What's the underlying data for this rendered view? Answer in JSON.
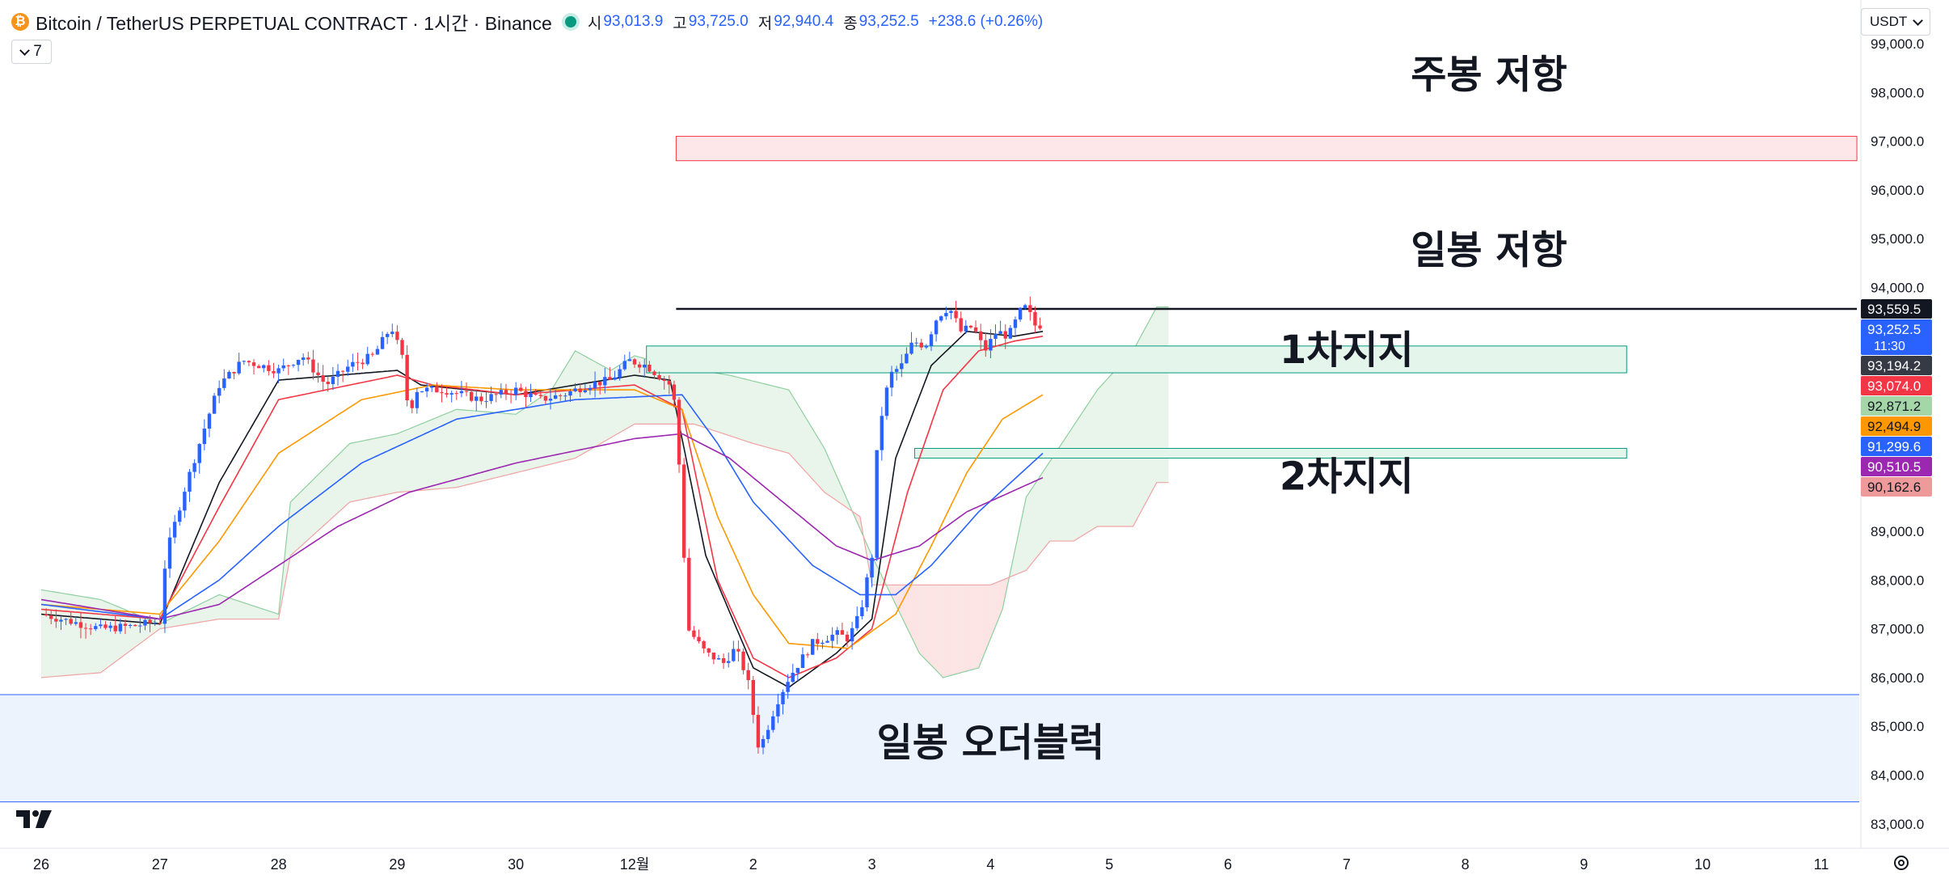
{
  "header": {
    "symbol": "Bitcoin / TetherUS PERPETUAL CONTRACT · 1시간 · Binance",
    "coin_icon_glyph": "₿",
    "open_label": "시",
    "open": "93,013.9",
    "high_label": "고",
    "high": "93,725.0",
    "low_label": "저",
    "low": "92,940.4",
    "close_label": "종",
    "close": "93,252.5",
    "change": "+238.6 (+0.26%)"
  },
  "indicator_toggle": {
    "count": "7"
  },
  "currency_select": {
    "value": "USDT"
  },
  "icons": {
    "logo": "tradingview-logo-icon",
    "settings": "gear-icon",
    "dropdown": "chevron-down-icon"
  },
  "chart_data": {
    "type": "candlestick",
    "interval": "1h",
    "y_axis": {
      "min": 83000,
      "max": 99000,
      "ticks": [
        {
          "value": 99000,
          "label": "99,000.0"
        },
        {
          "value": 98000,
          "label": "98,000.0"
        },
        {
          "value": 97000,
          "label": "97,000.0"
        },
        {
          "value": 96000,
          "label": "96,000.0"
        },
        {
          "value": 95000,
          "label": "95,000.0"
        },
        {
          "value": 94000,
          "label": "94,000.0"
        },
        {
          "value": 89000,
          "label": "89,000.0"
        },
        {
          "value": 88000,
          "label": "88,000.0"
        },
        {
          "value": 87000,
          "label": "87,000.0"
        },
        {
          "value": 86000,
          "label": "86,000.0"
        },
        {
          "value": 85000,
          "label": "85,000.0"
        },
        {
          "value": 84000,
          "label": "84,000.0"
        },
        {
          "value": 83000,
          "label": "83,000.0"
        }
      ]
    },
    "x_axis": {
      "ticks": [
        {
          "day": 0,
          "label": "26"
        },
        {
          "day": 1,
          "label": "27"
        },
        {
          "day": 2,
          "label": "28"
        },
        {
          "day": 3,
          "label": "29"
        },
        {
          "day": 4,
          "label": "30"
        },
        {
          "day": 5,
          "label": "12월"
        },
        {
          "day": 6,
          "label": "2"
        },
        {
          "day": 7,
          "label": "3"
        },
        {
          "day": 8,
          "label": "4"
        },
        {
          "day": 9,
          "label": "5"
        },
        {
          "day": 10,
          "label": "6"
        },
        {
          "day": 11,
          "label": "7"
        },
        {
          "day": 12,
          "label": "8"
        },
        {
          "day": 13,
          "label": "9"
        },
        {
          "day": 14,
          "label": "10"
        },
        {
          "day": 15,
          "label": "11"
        }
      ]
    },
    "price_path": [
      [
        0,
        87300
      ],
      [
        0.25,
        87150
      ],
      [
        0.5,
        87000
      ],
      [
        0.75,
        87050
      ],
      [
        1,
        87150
      ],
      [
        1.05,
        88500
      ],
      [
        1.2,
        89800
      ],
      [
        1.4,
        91300
      ],
      [
        1.5,
        92000
      ],
      [
        1.7,
        92500
      ],
      [
        2,
        92300
      ],
      [
        2.2,
        92600
      ],
      [
        2.4,
        92000
      ],
      [
        2.6,
        92400
      ],
      [
        2.8,
        92600
      ],
      [
        2.95,
        93200
      ],
      [
        3.05,
        92500
      ],
      [
        3.1,
        91300
      ],
      [
        3.15,
        91900
      ],
      [
        3.4,
        91900
      ],
      [
        3.7,
        91700
      ],
      [
        4,
        91900
      ],
      [
        4.2,
        91700
      ],
      [
        4.4,
        91800
      ],
      [
        4.6,
        92000
      ],
      [
        4.8,
        92100
      ],
      [
        4.95,
        92500
      ],
      [
        5.1,
        92400
      ],
      [
        5.3,
        92000
      ],
      [
        5.35,
        91500
      ],
      [
        5.45,
        87000
      ],
      [
        5.6,
        86500
      ],
      [
        5.75,
        86300
      ],
      [
        5.85,
        86600
      ],
      [
        5.95,
        86000
      ],
      [
        6.05,
        84500
      ],
      [
        6.2,
        85500
      ],
      [
        6.3,
        86000
      ],
      [
        6.5,
        86700
      ],
      [
        6.7,
        86900
      ],
      [
        6.8,
        86800
      ],
      [
        6.9,
        87300
      ],
      [
        7.0,
        88500
      ],
      [
        7.05,
        91000
      ],
      [
        7.15,
        92200
      ],
      [
        7.25,
        92400
      ],
      [
        7.35,
        92900
      ],
      [
        7.45,
        92800
      ],
      [
        7.55,
        93400
      ],
      [
        7.65,
        93600
      ],
      [
        7.75,
        93100
      ],
      [
        7.85,
        93200
      ],
      [
        7.95,
        92700
      ],
      [
        8.05,
        93100
      ],
      [
        8.15,
        93000
      ],
      [
        8.25,
        93500
      ],
      [
        8.3,
        93600
      ],
      [
        8.38,
        93200
      ],
      [
        8.44,
        93252.5
      ]
    ],
    "moving_averages": [
      {
        "color": "#131722",
        "points": [
          [
            0,
            87300
          ],
          [
            1,
            87100
          ],
          [
            1.5,
            90000
          ],
          [
            2,
            92100
          ],
          [
            3,
            92300
          ],
          [
            3.2,
            92000
          ],
          [
            4,
            91800
          ],
          [
            5,
            92200
          ],
          [
            5.3,
            92100
          ],
          [
            5.6,
            88500
          ],
          [
            6,
            86200
          ],
          [
            6.3,
            85800
          ],
          [
            6.7,
            86500
          ],
          [
            7,
            87200
          ],
          [
            7.2,
            90500
          ],
          [
            7.5,
            92400
          ],
          [
            7.8,
            93100
          ],
          [
            8.2,
            93000
          ],
          [
            8.44,
            93100
          ]
        ]
      },
      {
        "color": "#f23645",
        "points": [
          [
            0,
            87400
          ],
          [
            1,
            87200
          ],
          [
            1.5,
            89500
          ],
          [
            2,
            91700
          ],
          [
            3,
            92200
          ],
          [
            3.3,
            92000
          ],
          [
            4,
            91800
          ],
          [
            5,
            92000
          ],
          [
            5.4,
            91500
          ],
          [
            5.7,
            88000
          ],
          [
            6,
            86400
          ],
          [
            6.3,
            86000
          ],
          [
            6.7,
            86400
          ],
          [
            7,
            87000
          ],
          [
            7.3,
            89800
          ],
          [
            7.6,
            91900
          ],
          [
            7.9,
            92700
          ],
          [
            8.2,
            92900
          ],
          [
            8.44,
            93000
          ]
        ]
      },
      {
        "color": "#ff9800",
        "points": [
          [
            0,
            87500
          ],
          [
            1,
            87300
          ],
          [
            1.5,
            88800
          ],
          [
            2,
            90600
          ],
          [
            2.7,
            91700
          ],
          [
            3.3,
            92000
          ],
          [
            4,
            91900
          ],
          [
            5,
            91900
          ],
          [
            5.4,
            91500
          ],
          [
            5.7,
            89300
          ],
          [
            6,
            87700
          ],
          [
            6.3,
            86700
          ],
          [
            6.8,
            86600
          ],
          [
            7.2,
            87300
          ],
          [
            7.5,
            88700
          ],
          [
            7.8,
            90200
          ],
          [
            8.1,
            91300
          ],
          [
            8.44,
            91800
          ]
        ]
      },
      {
        "color": "#2962ff",
        "points": [
          [
            0,
            87500
          ],
          [
            1,
            87200
          ],
          [
            1.5,
            88000
          ],
          [
            2,
            89100
          ],
          [
            2.7,
            90400
          ],
          [
            3.5,
            91300
          ],
          [
            4.5,
            91700
          ],
          [
            5.4,
            91800
          ],
          [
            5.7,
            90800
          ],
          [
            6,
            89600
          ],
          [
            6.5,
            88300
          ],
          [
            6.9,
            87700
          ],
          [
            7.2,
            87700
          ],
          [
            7.5,
            88300
          ],
          [
            7.9,
            89400
          ],
          [
            8.44,
            90600
          ]
        ]
      },
      {
        "color": "#9c27b0",
        "points": [
          [
            0,
            87600
          ],
          [
            1,
            87200
          ],
          [
            1.5,
            87500
          ],
          [
            2,
            88300
          ],
          [
            2.5,
            89100
          ],
          [
            3.1,
            89800
          ],
          [
            4,
            90400
          ],
          [
            5,
            90900
          ],
          [
            5.4,
            91000
          ],
          [
            5.8,
            90500
          ],
          [
            6.3,
            89500
          ],
          [
            6.7,
            88700
          ],
          [
            7,
            88400
          ],
          [
            7.4,
            88700
          ],
          [
            7.8,
            89400
          ],
          [
            8.44,
            90100
          ]
        ]
      }
    ],
    "cloud": {
      "green_upper": [
        [
          0,
          87800
        ],
        [
          0.5,
          87600
        ],
        [
          1,
          87100
        ],
        [
          1.5,
          87700
        ],
        [
          2,
          87300
        ],
        [
          2.1,
          89600
        ],
        [
          2.6,
          90800
        ],
        [
          3,
          91000
        ],
        [
          3.5,
          91500
        ],
        [
          4,
          91400
        ],
        [
          4.3,
          91900
        ],
        [
          4.5,
          92700
        ],
        [
          4.8,
          92300
        ],
        [
          5,
          92600
        ],
        [
          5.3,
          92400
        ],
        [
          5.8,
          92200
        ],
        [
          6.3,
          91900
        ],
        [
          6.6,
          90700
        ],
        [
          7,
          88500
        ],
        [
          7.4,
          86500
        ],
        [
          7.6,
          86000
        ],
        [
          7.9,
          86200
        ],
        [
          8.1,
          87400
        ],
        [
          8.3,
          89700
        ],
        [
          8.6,
          90800
        ],
        [
          8.9,
          91900
        ],
        [
          9.2,
          92700
        ],
        [
          9.4,
          93600
        ],
        [
          9.5,
          93600
        ]
      ],
      "red_lower": [
        [
          0,
          86000
        ],
        [
          0.5,
          86100
        ],
        [
          1,
          87000
        ],
        [
          1.5,
          87200
        ],
        [
          2,
          87200
        ],
        [
          2.1,
          88500
        ],
        [
          2.6,
          89600
        ],
        [
          3,
          89800
        ],
        [
          3.5,
          89900
        ],
        [
          4,
          90200
        ],
        [
          4.5,
          90500
        ],
        [
          5,
          91200
        ],
        [
          5.5,
          91200
        ],
        [
          6,
          90800
        ],
        [
          6.3,
          90600
        ],
        [
          6.6,
          89800
        ],
        [
          6.9,
          89300
        ],
        [
          7,
          87900
        ],
        [
          7.5,
          87900
        ],
        [
          8,
          87900
        ],
        [
          8.3,
          88200
        ],
        [
          8.5,
          88800
        ],
        [
          8.7,
          88800
        ],
        [
          8.9,
          89100
        ],
        [
          9.2,
          89100
        ],
        [
          9.4,
          90000
        ],
        [
          9.5,
          90000
        ]
      ]
    },
    "zones": [
      {
        "kind": "resistance",
        "label": "주봉 저항",
        "from_day": 5.35,
        "to_day": 15.3,
        "low": 96600,
        "high": 97100,
        "fill": "#fde7e9",
        "stroke": "#f23645"
      },
      {
        "kind": "level",
        "label": "일봉 저항",
        "from_day": 5.35,
        "to_day": 15.3,
        "price": 93559.5
      },
      {
        "kind": "support",
        "label": "1차지지",
        "from_day": 5.1,
        "to_day": 13.36,
        "low": 92250,
        "high": 92800,
        "fill": "#e4f5ec",
        "stroke": "#089981"
      },
      {
        "kind": "support",
        "label": "2차지지",
        "from_day": 7.36,
        "to_day": 13.36,
        "low": 90500,
        "high": 90700,
        "fill": "#e4f5ec",
        "stroke": "#089981"
      },
      {
        "kind": "order-block",
        "label": "일봉 오더블럭",
        "from_day": -0.3,
        "to_day": 15.3,
        "low": 83450,
        "high": 85650,
        "fill": "#edf3fd",
        "stroke": "#2962ff"
      }
    ],
    "annotations": [
      {
        "text": "주봉 저항",
        "day": 12.2,
        "price": 98100
      },
      {
        "text": "일봉 저항",
        "day": 12.2,
        "price": 94500
      },
      {
        "text": "1차지지",
        "day": 11.0,
        "price": 92450
      },
      {
        "text": "2차지지",
        "day": 11.0,
        "price": 89850
      },
      {
        "text": "일봉 오더블럭",
        "day": 8.0,
        "price": 84400
      }
    ],
    "price_labels": [
      {
        "value": 93559.5,
        "label": "93,559.5",
        "bg": "#131722",
        "fg": "#ffffff"
      },
      {
        "value": 93252.5,
        "label": "93,252.5",
        "sub": "11:30",
        "bg": "#2962ff",
        "fg": "#ffffff"
      },
      {
        "value": 93194.2,
        "label": "93,194.2",
        "bg": "#363a45",
        "fg": "#ffffff"
      },
      {
        "value": 93074.0,
        "label": "93,074.0",
        "bg": "#f23645",
        "fg": "#ffffff"
      },
      {
        "value": 92871.2,
        "label": "92,871.2",
        "bg": "#a5d6a7",
        "fg": "#131722"
      },
      {
        "value": 92494.9,
        "label": "92,494.9",
        "bg": "#ff9800",
        "fg": "#131722"
      },
      {
        "value": 91299.6,
        "label": "91,299.6",
        "bg": "#2962ff",
        "fg": "#ffffff"
      },
      {
        "value": 90510.5,
        "label": "90,510.5",
        "bg": "#9c27b0",
        "fg": "#ffffff"
      },
      {
        "value": 90162.6,
        "label": "90,162.6",
        "bg": "#ef9a9a",
        "fg": "#131722"
      }
    ],
    "colors": {
      "up": "#2962ff",
      "down": "#f23645"
    }
  }
}
